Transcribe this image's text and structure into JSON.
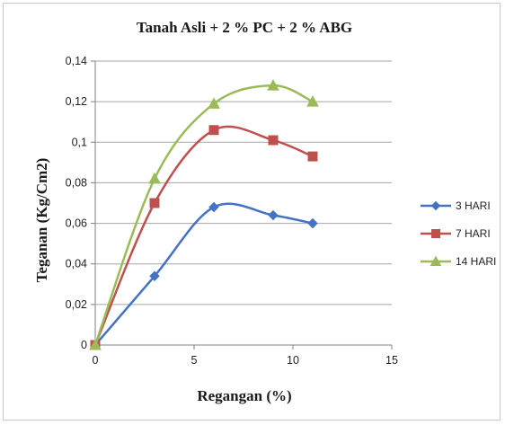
{
  "chart_data": {
    "type": "scatter",
    "title": "Tanah Asli + 2 % PC + 2 % ABG",
    "xlabel": "Regangan (%)",
    "ylabel": "Teganan (Kg/Cm2)",
    "xlim": [
      0,
      15
    ],
    "ylim": [
      0,
      0.14
    ],
    "xticks": [
      "0",
      "5",
      "10",
      "15"
    ],
    "yticks": [
      "0",
      "0,02",
      "0,04",
      "0,06",
      "0,08",
      "0,1",
      "0,12",
      "0,14"
    ],
    "grid": "horizontal",
    "legend_position": "right",
    "smooth_lines": true,
    "series": [
      {
        "name": "3 HARI",
        "color": "#4472c4",
        "marker": "diamond",
        "x": [
          0,
          3,
          6,
          9,
          11
        ],
        "y": [
          0,
          0.034,
          0.068,
          0.064,
          0.06
        ]
      },
      {
        "name": "7 HARI",
        "color": "#c0504d",
        "marker": "square",
        "x": [
          0,
          3,
          6,
          9,
          11
        ],
        "y": [
          0,
          0.07,
          0.106,
          0.101,
          0.093
        ]
      },
      {
        "name": "14 HARI",
        "color": "#9bbb59",
        "marker": "triangle",
        "x": [
          0,
          3,
          6,
          9,
          11
        ],
        "y": [
          0,
          0.082,
          0.119,
          0.128,
          0.12
        ]
      }
    ]
  }
}
